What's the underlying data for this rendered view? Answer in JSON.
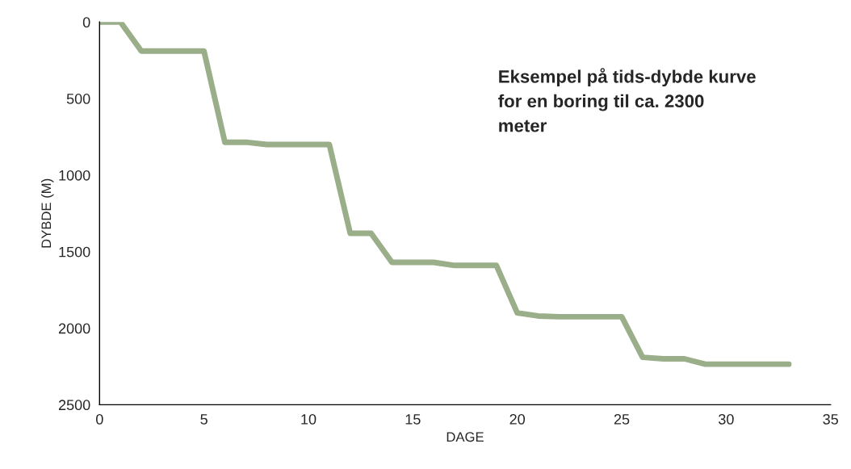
{
  "chart_data": {
    "type": "line",
    "xlabel": "DAGE",
    "ylabel": "DYBDE (M)",
    "x": [
      0,
      1,
      2,
      5,
      6,
      7,
      8,
      11,
      12,
      13,
      14,
      16,
      17,
      19,
      20,
      21,
      22,
      25,
      26,
      27,
      28,
      29,
      33
    ],
    "series": [
      {
        "color": "#9aae8a",
        "values": [
          0,
          0,
          190,
          190,
          785,
          785,
          800,
          800,
          1380,
          1380,
          1570,
          1570,
          1590,
          1590,
          1900,
          1920,
          1925,
          1925,
          2190,
          2200,
          2200,
          2235,
          2235
        ]
      }
    ],
    "xlim": [
      0,
      35
    ],
    "xticks": [
      0,
      5,
      10,
      15,
      20,
      25,
      30,
      35
    ],
    "ylim": [
      2500,
      0
    ],
    "yticks": [
      0,
      500,
      1000,
      1500,
      2000,
      2500
    ],
    "grid": false,
    "legend": false,
    "marker": "none",
    "line_style": "solid",
    "annotations": [
      "Eksempel på tids-dybde kurve\nfor en boring til ca. 2300\nmeter"
    ]
  }
}
